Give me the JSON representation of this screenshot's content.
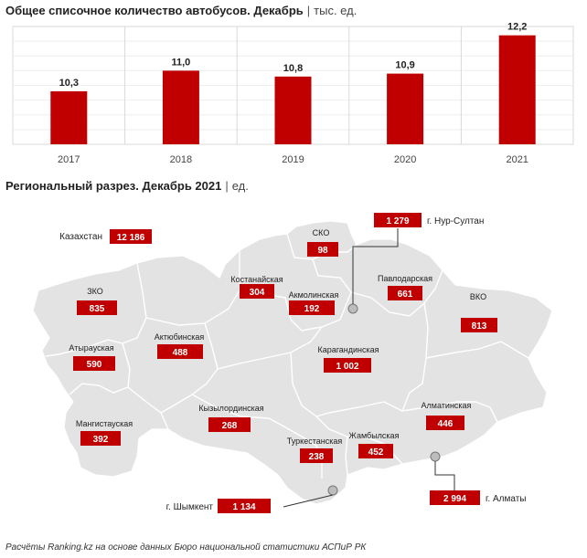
{
  "chart": {
    "title": "Общее списочное количество автобусов. Декабрь",
    "unit": "тыс. ед."
  },
  "chart_data": {
    "type": "bar",
    "categories": [
      "2017",
      "2018",
      "2019",
      "2020",
      "2021"
    ],
    "values": [
      10.3,
      11.0,
      10.8,
      10.9,
      12.2
    ],
    "value_labels": [
      "10,3",
      "11,0",
      "10,8",
      "10,9",
      "12,2"
    ],
    "ylim": [
      8.5,
      12.5
    ],
    "grid": true,
    "bar_color": "#c00000"
  },
  "map": {
    "title": "Региональный разрез. Декабрь 2021",
    "unit": "ед.",
    "total_label": "Казахстан",
    "total_value": "12 186",
    "regions": [
      {
        "id": "sko",
        "name": "СКО",
        "value": "98"
      },
      {
        "id": "kostanay",
        "name": "Костанайская",
        "value": "304"
      },
      {
        "id": "akmola",
        "name": "Акмолинская",
        "value": "192"
      },
      {
        "id": "pavlodar",
        "name": "Павлодарская",
        "value": "661"
      },
      {
        "id": "zko",
        "name": "ЗКО",
        "value": "835"
      },
      {
        "id": "vko",
        "name": "ВКО",
        "value": "813"
      },
      {
        "id": "atyrau",
        "name": "Атырауская",
        "value": "590"
      },
      {
        "id": "aktobe",
        "name": "Актюбинская",
        "value": "488"
      },
      {
        "id": "karaganda",
        "name": "Карагандинская",
        "value": "1 002"
      },
      {
        "id": "kyzylorda",
        "name": "Кызылординская",
        "value": "268"
      },
      {
        "id": "mangystau",
        "name": "Мангистауская",
        "value": "392"
      },
      {
        "id": "almaty_reg",
        "name": "Алматинская",
        "value": "446"
      },
      {
        "id": "turkestan",
        "name": "Туркестанская",
        "value": "238"
      },
      {
        "id": "zhambyl",
        "name": "Жамбылская",
        "value": "452"
      }
    ],
    "cities": [
      {
        "id": "nursultan",
        "name": "г. Нур-Султан",
        "value": "1 279"
      },
      {
        "id": "shymkent",
        "name": "г. Шымкент",
        "value": "1 134"
      },
      {
        "id": "almaty",
        "name": "г. Алматы",
        "value": "2 994"
      }
    ]
  },
  "colors": {
    "accent": "#c00000",
    "map_fill": "#e3e3e3",
    "map_border": "#ffffff"
  },
  "footer": "Расчёты Ranking.kz на основе данных Бюро национальной статистики АСПиР РК"
}
